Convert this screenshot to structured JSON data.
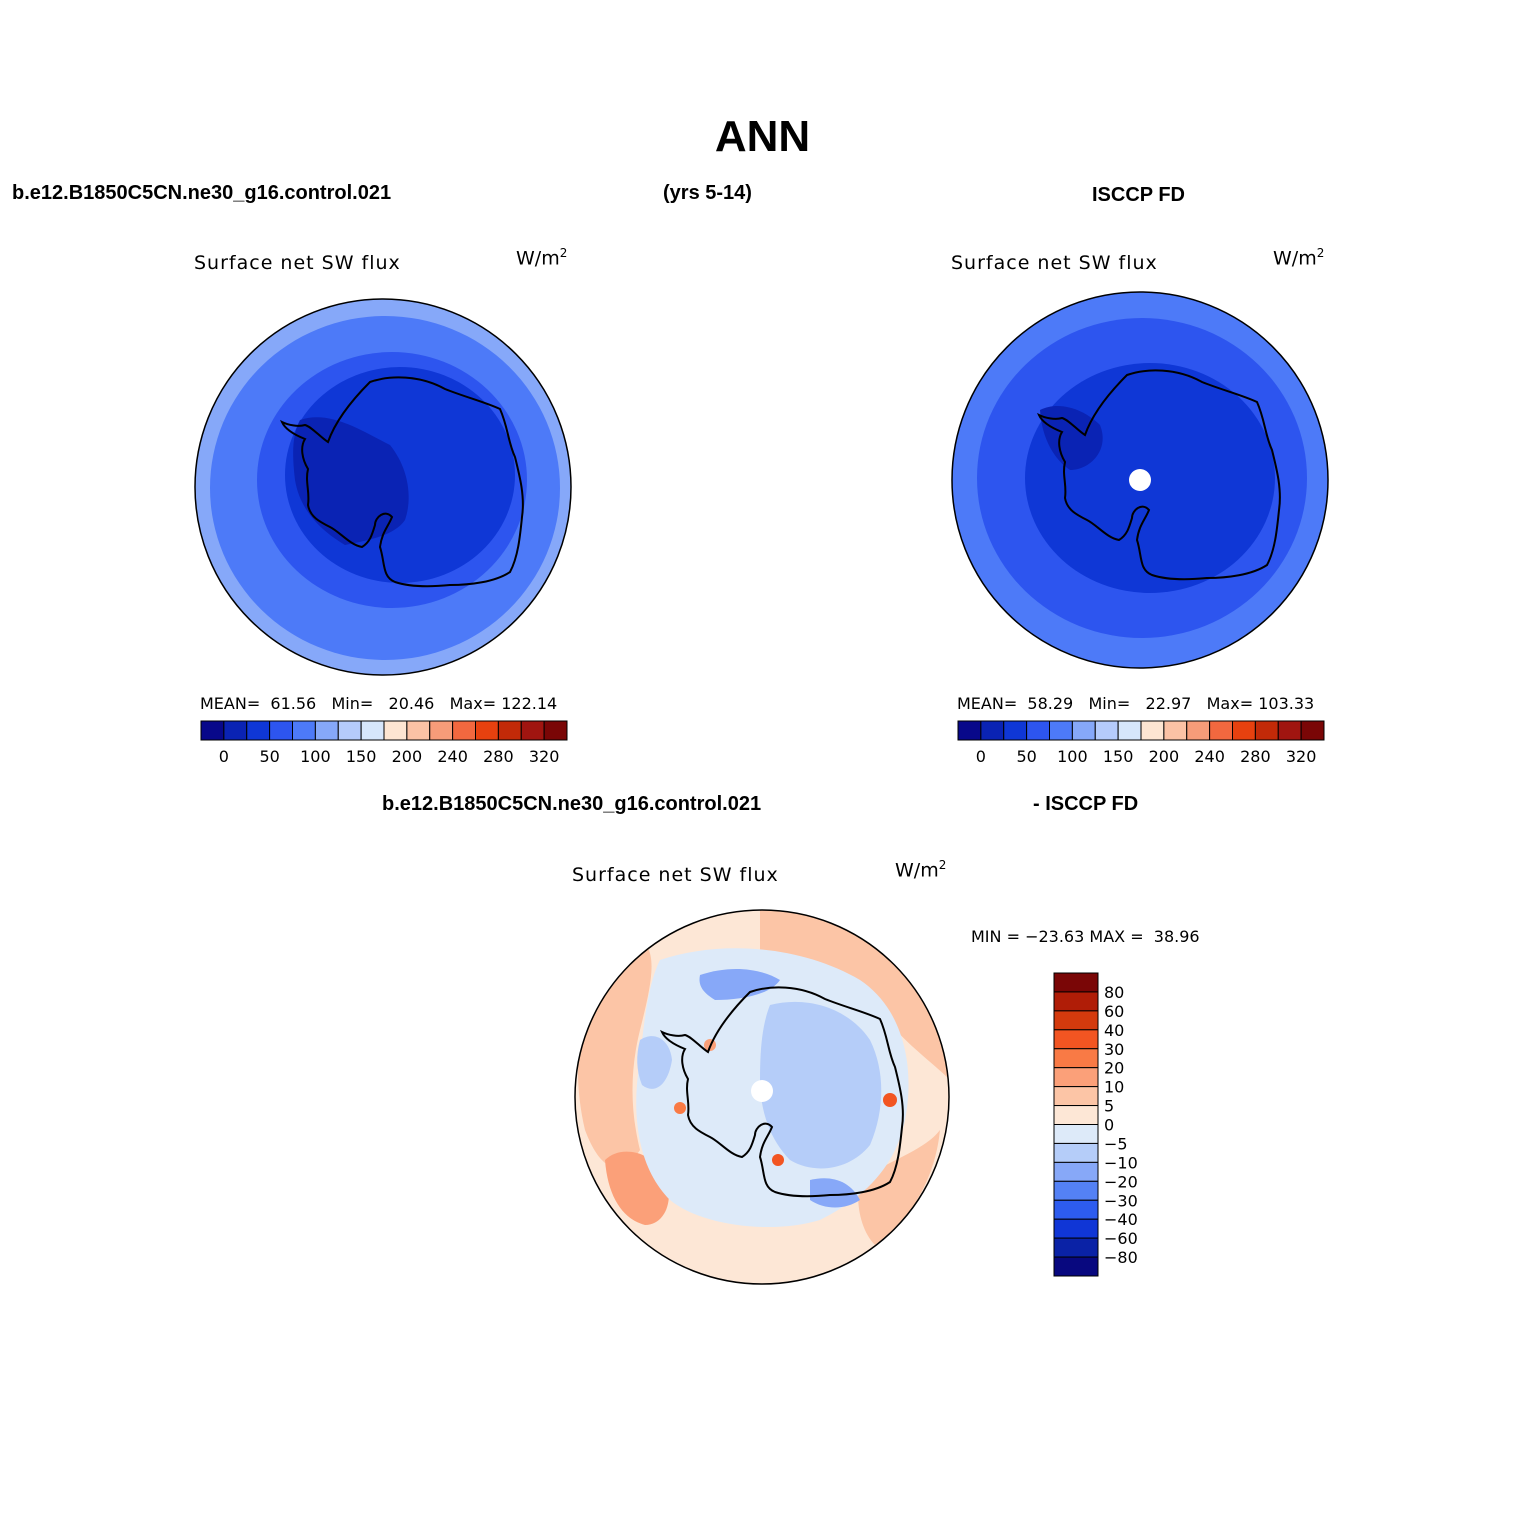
{
  "title": "ANN",
  "header": {
    "left": "b.e12.B1850C5CN.ne30_g16.control.021",
    "center": "(yrs 5-14)",
    "right": "ISCCP FD",
    "diff_left": "b.e12.B1850C5CN.ne30_g16.control.021",
    "diff_right": "- ISCCP FD"
  },
  "panels": [
    {
      "id": "model",
      "variable": "Surface net SW flux",
      "units_base": "W/m",
      "units_exp": "2",
      "stats": {
        "mean_label": "MEAN=",
        "mean": "61.56",
        "min_label": "Min=",
        "min": "20.46",
        "max_label": "Max=",
        "max": "122.14"
      }
    },
    {
      "id": "obs",
      "variable": "Surface net SW flux",
      "units_base": "W/m",
      "units_exp": "2",
      "stats": {
        "mean_label": "MEAN=",
        "mean": "58.29",
        "min_label": "Min=",
        "min": "22.97",
        "max_label": "Max=",
        "max": "103.33"
      }
    },
    {
      "id": "diff",
      "variable": "Surface net SW flux",
      "units_base": "W/m",
      "units_exp": "2",
      "stats": {
        "min_label": "MIN =",
        "min": "−23.63",
        "max_label": "MAX =",
        "max": "38.96"
      }
    }
  ],
  "colorbar_abs": {
    "colors": [
      "#08088a",
      "#0a23b4",
      "#0f37d6",
      "#2d55ef",
      "#4d7af8",
      "#86a8f9",
      "#b5cbfb",
      "#d6e6fb",
      "#fde5d2",
      "#fbc2a5",
      "#f69c79",
      "#f2683f",
      "#e7410f",
      "#c22a08",
      "#a01510",
      "#7a0606"
    ],
    "tick_labels": [
      "0",
      "50",
      "100",
      "150",
      "200",
      "240",
      "280",
      "320"
    ]
  },
  "colorbar_diff": {
    "colors": [
      "#7a0606",
      "#b01d07",
      "#d43a0d",
      "#f25522",
      "#f97a45",
      "#fba079",
      "#fcc5a6",
      "#fde7d6",
      "#ddeaf9",
      "#b5cdf9",
      "#87a8f8",
      "#5481f5",
      "#2d5cef",
      "#1036d6",
      "#0a22a6",
      "#08087f"
    ],
    "tick_labels": [
      "80",
      "60",
      "40",
      "30",
      "20",
      "10",
      "5",
      "0",
      "−5",
      "−10",
      "−20",
      "−30",
      "−40",
      "−60",
      "−80"
    ]
  },
  "map_colors": {
    "abs_outer": "#86a8f9",
    "abs_ring2": "#4d7af8",
    "abs_ring3": "#2d55ef",
    "abs_inner": "#0f37d6",
    "abs_darkest": "#0a23b4",
    "diff_base": "#fde7d6",
    "diff_light": "#fcc5a6",
    "diff_mid": "#fba079",
    "diff_neg1": "#ddeaf9",
    "diff_neg2": "#b5cdf9",
    "diff_neg3": "#87a8f8",
    "diff_hot": "#f25522"
  }
}
